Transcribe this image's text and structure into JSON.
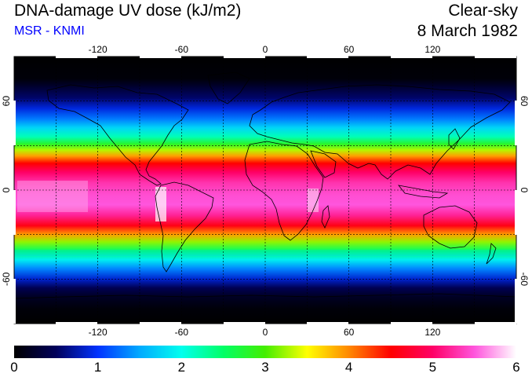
{
  "header": {
    "title": "DNA-damage UV dose (kJ/m2)",
    "credit": "MSR - KNMI",
    "sky_condition": "Clear-sky",
    "date": "8 March 1982"
  },
  "colors": {
    "credit": "#0000ff"
  },
  "map": {
    "projection": "equirectangular",
    "lon_range": [
      -180,
      180
    ],
    "lat_range": [
      -90,
      90
    ],
    "lon_ticks": [
      {
        "value": -120,
        "label": "-120"
      },
      {
        "value": -60,
        "label": "-60"
      },
      {
        "value": 0,
        "label": "0"
      },
      {
        "value": 60,
        "label": "60"
      },
      {
        "value": 120,
        "label": "120"
      }
    ],
    "lat_ticks": [
      {
        "value": 60,
        "label": "60"
      },
      {
        "value": 0,
        "label": "0"
      },
      {
        "value": -60,
        "label": "-60"
      }
    ],
    "grid_spacing_deg": 30
  },
  "colorbar": {
    "min": 0,
    "max": 6,
    "labels": [
      "0",
      "1",
      "2",
      "3",
      "4",
      "5",
      "6"
    ],
    "stops": [
      {
        "value": 0,
        "color": "#000000"
      },
      {
        "value": 0.5,
        "color": "#00005a"
      },
      {
        "value": 1.0,
        "color": "#0032ff"
      },
      {
        "value": 1.5,
        "color": "#00aaff"
      },
      {
        "value": 2.0,
        "color": "#00ffee"
      },
      {
        "value": 2.5,
        "color": "#00ff66"
      },
      {
        "value": 3.0,
        "color": "#44ee00"
      },
      {
        "value": 3.5,
        "color": "#ffff00"
      },
      {
        "value": 4.0,
        "color": "#ff8800"
      },
      {
        "value": 4.5,
        "color": "#ff0000"
      },
      {
        "value": 5.0,
        "color": "#ff0066"
      },
      {
        "value": 5.5,
        "color": "#ff55dd"
      },
      {
        "value": 6.0,
        "color": "#ffffff"
      }
    ]
  },
  "zonal_profile": [
    {
      "lat": 90,
      "value": 0.0
    },
    {
      "lat": 75,
      "value": 0.05
    },
    {
      "lat": 70,
      "value": 0.25
    },
    {
      "lat": 62,
      "value": 0.55
    },
    {
      "lat": 55,
      "value": 0.9
    },
    {
      "lat": 48,
      "value": 1.3
    },
    {
      "lat": 42,
      "value": 1.75
    },
    {
      "lat": 36,
      "value": 2.2
    },
    {
      "lat": 31,
      "value": 2.8
    },
    {
      "lat": 27,
      "value": 3.3
    },
    {
      "lat": 23,
      "value": 3.9
    },
    {
      "lat": 18,
      "value": 4.5
    },
    {
      "lat": 12,
      "value": 5.0
    },
    {
      "lat": 5,
      "value": 5.3
    },
    {
      "lat": -3,
      "value": 5.45
    },
    {
      "lat": -10,
      "value": 5.5
    },
    {
      "lat": -17,
      "value": 5.2
    },
    {
      "lat": -24,
      "value": 4.6
    },
    {
      "lat": -30,
      "value": 3.9
    },
    {
      "lat": -35,
      "value": 3.2
    },
    {
      "lat": -41,
      "value": 2.5
    },
    {
      "lat": -47,
      "value": 1.9
    },
    {
      "lat": -53,
      "value": 1.35
    },
    {
      "lat": -60,
      "value": 0.85
    },
    {
      "lat": -66,
      "value": 0.45
    },
    {
      "lat": -72,
      "value": 0.2
    },
    {
      "lat": -80,
      "value": 0.05
    },
    {
      "lat": -90,
      "value": 0.0
    }
  ]
}
